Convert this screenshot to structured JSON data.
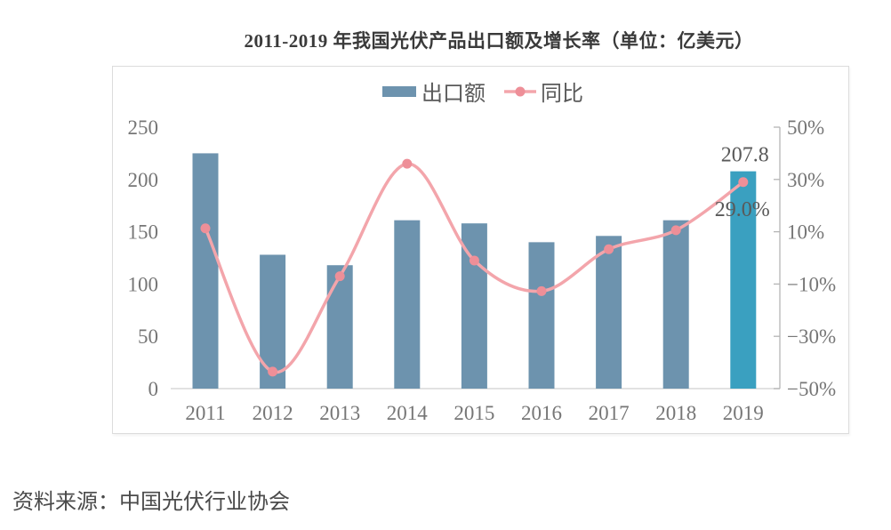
{
  "title": "2011-2019 年我国光伏产品出口额及增长率（单位：亿美元）",
  "source": "资料来源：中国光伏行业协会",
  "legend": {
    "bar_label": "出口额",
    "line_label": "同比"
  },
  "chart_data": {
    "type": "bar",
    "title": "2011-2019 年我国光伏产品出口额及增长率（单位：亿美元）",
    "categories": [
      "2011",
      "2012",
      "2013",
      "2014",
      "2015",
      "2016",
      "2017",
      "2018",
      "2019"
    ],
    "series": [
      {
        "name": "出口额",
        "type": "bar",
        "axis": "left",
        "highlight_index": 8,
        "values": [
          225,
          128,
          118,
          161,
          158,
          140,
          146,
          161,
          207.8
        ]
      },
      {
        "name": "同比",
        "type": "line",
        "axis": "right",
        "values": [
          11.3,
          -43.5,
          -7,
          36,
          -1,
          -12.7,
          3.3,
          10.6,
          29.0
        ]
      }
    ],
    "left_axis": {
      "ticks": [
        "0",
        "50",
        "100",
        "150",
        "200",
        "250"
      ],
      "values": [
        0,
        50,
        100,
        150,
        200,
        250
      ],
      "ylim": [
        0,
        250
      ]
    },
    "right_axis": {
      "ticks": [
        "50%",
        "30%",
        "10%",
        "−10%",
        "−30%",
        "−50%"
      ],
      "values": [
        50,
        30,
        10,
        -10,
        -30,
        -50
      ],
      "ylim": [
        -50,
        50
      ]
    },
    "annotations": [
      {
        "text": "207.8",
        "series": "出口额",
        "category": "2019"
      },
      {
        "text": "29.0%",
        "series": "同比",
        "category": "2019"
      }
    ],
    "legend_position": "top",
    "grid": false,
    "xlabel": "",
    "ylabel": ""
  },
  "colors": {
    "bar": "#6d93ae",
    "bar_highlight": "#3aa0c0",
    "line": "#f3a5ab",
    "marker": "#ee8f98",
    "axis_text": "#767676",
    "data_label": "#595959",
    "baseline": "#d9d9d9",
    "spine": "#b5b5b5",
    "title_color": "#3a3a3a",
    "source_color": "#4a4a4a"
  }
}
